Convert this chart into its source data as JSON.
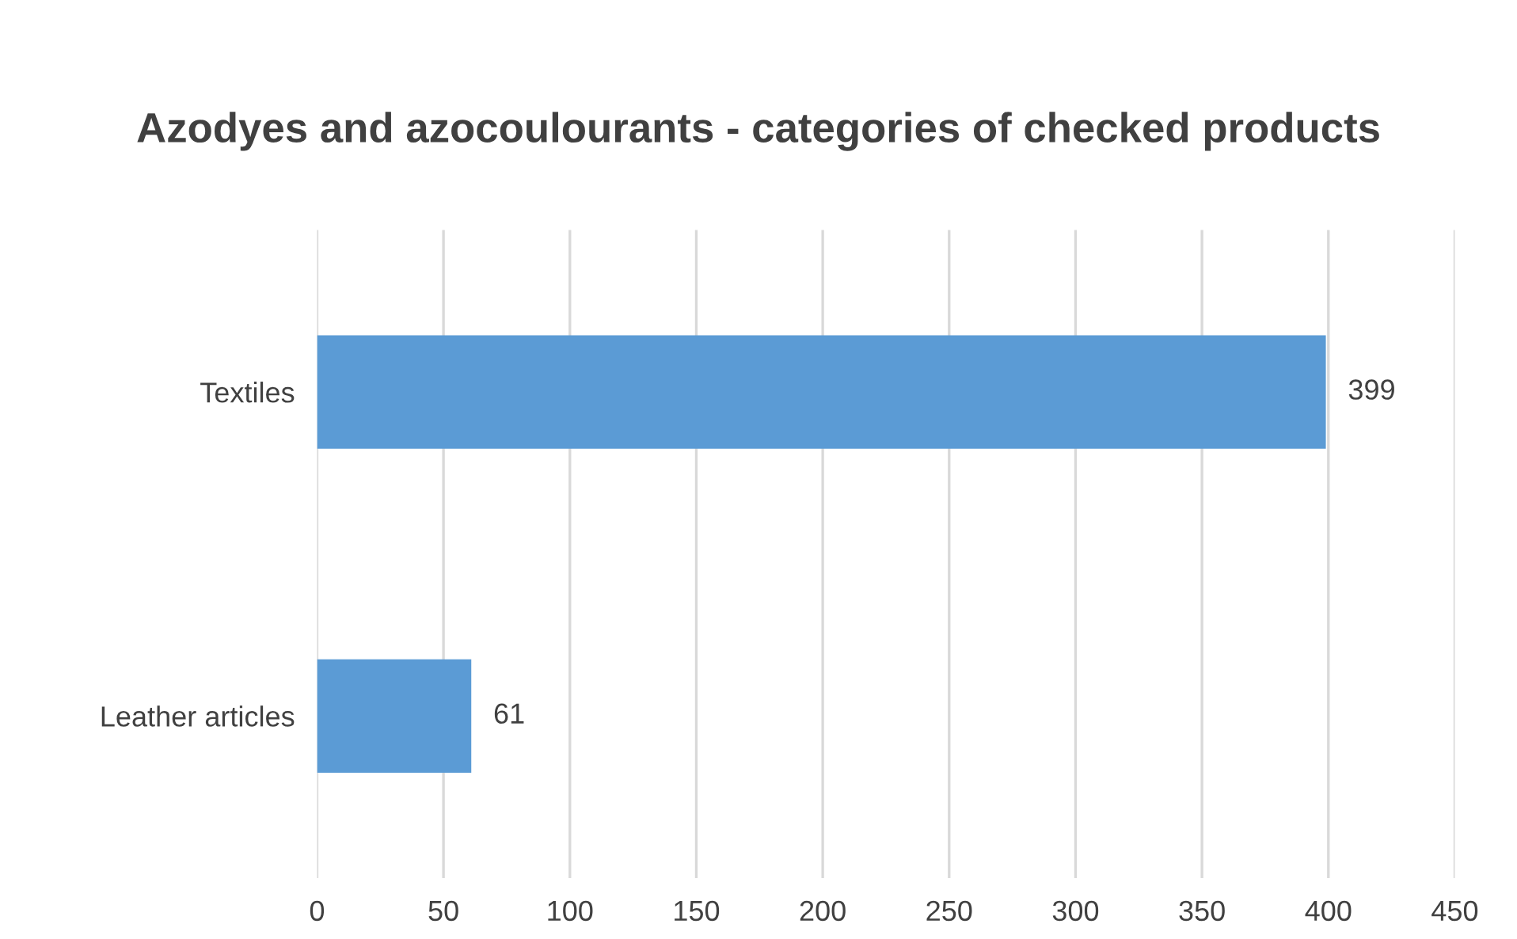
{
  "chart_data": {
    "type": "bar",
    "orientation": "horizontal",
    "title": "Azodyes and azocoulourants - categories of checked products",
    "categories": [
      "Textiles",
      "Leather articles"
    ],
    "values": [
      399,
      61
    ],
    "color": "#5b9bd5",
    "xlim": [
      0,
      450
    ],
    "xticks": [
      0,
      50,
      100,
      150,
      200,
      250,
      300,
      350,
      400,
      450
    ],
    "grid": "x",
    "data_labels": true,
    "legend": false
  }
}
